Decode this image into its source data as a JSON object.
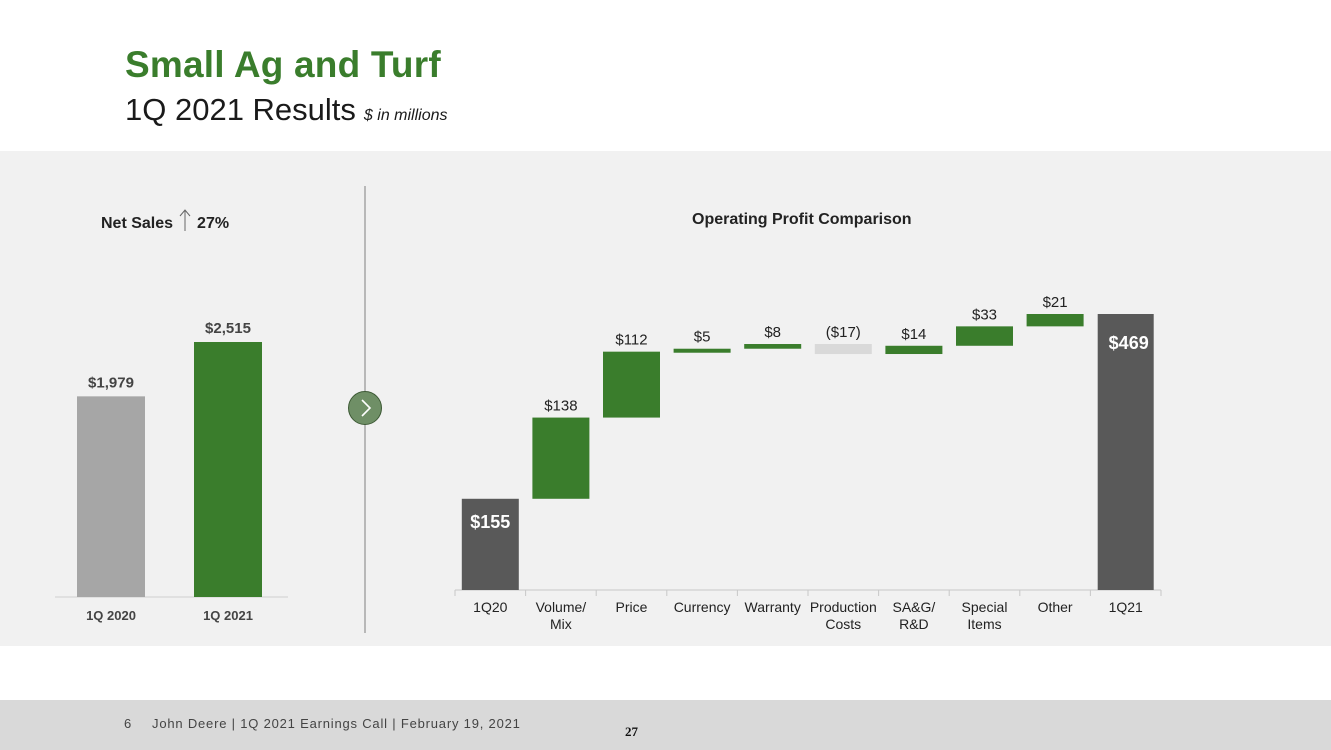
{
  "slide": {
    "title": "Small Ag and Turf",
    "subtitle": "1Q 2021 Results",
    "units": "$ in millions"
  },
  "net_sales": {
    "label": "Net Sales",
    "change": "27%",
    "change_icon": "up-arrow-icon"
  },
  "operating_profit": {
    "title": "Operating Profit Comparison"
  },
  "colors": {
    "green": "#3a7d2c",
    "gray_bar": "#a6a6a6",
    "dark_bar": "#595959",
    "negative_bar": "#d9d9d9",
    "panel_bg": "#f1f1f1"
  },
  "chart_data": [
    {
      "type": "bar",
      "title": "Net Sales",
      "categories": [
        "1Q 2020",
        "1Q 2021"
      ],
      "values": [
        1979,
        2515
      ],
      "data_labels": [
        "$1,979",
        "$2,515"
      ],
      "ylim": [
        0,
        2515
      ]
    },
    {
      "type": "bar",
      "subtype": "waterfall",
      "title": "Operating Profit Comparison",
      "categories": [
        "1Q20",
        "Volume/ Mix",
        "Price",
        "Currency",
        "Warranty",
        "Production Costs",
        "SA&G/ R&D",
        "Special Items",
        "Other",
        "1Q21"
      ],
      "values": [
        155,
        138,
        112,
        5,
        8,
        -17,
        14,
        33,
        21,
        469
      ],
      "kinds": [
        "total",
        "delta",
        "delta",
        "delta",
        "delta",
        "delta",
        "delta",
        "delta",
        "delta",
        "total"
      ],
      "data_labels": [
        "$155",
        "$138",
        "$112",
        "$5",
        "$8",
        "($17)",
        "$14",
        "$33",
        "$21",
        "$469"
      ],
      "ylim": [
        0,
        469
      ]
    }
  ],
  "footer": {
    "slide_number": "6",
    "text": "John Deere | 1Q 2021 Earnings Call | February 19, 2021",
    "page": "27"
  }
}
